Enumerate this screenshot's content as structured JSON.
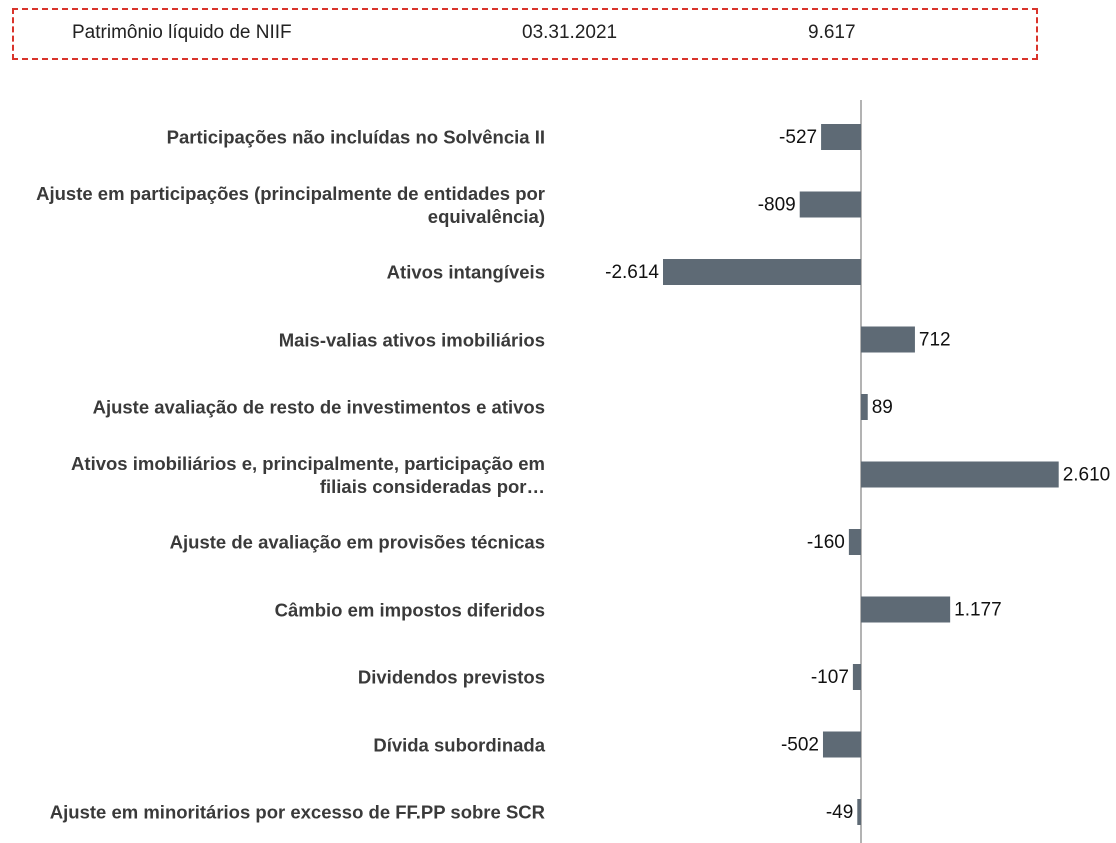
{
  "chart_data": {
    "type": "bar",
    "orientation": "horizontal",
    "annotations": [
      "Patrimônio líquido de NIIF",
      "03.31.2021",
      "9.617"
    ],
    "categories": [
      "Participações não incluídas no Solvência II",
      "Ajuste em participações (principalmente de entidades por equivalência)",
      "Ativos intangíveis",
      "Mais-valias ativos imobiliários",
      "Ajuste avaliação de resto de investimentos e ativos",
      "Ativos imobiliários e, principalmente, participação em filiais consideradas por…",
      "Ajuste de avaliação em provisões técnicas",
      "Câmbio em impostos diferidos",
      "Dividendos previstos",
      "Dívida subordinada",
      "Ajuste em minoritários por excesso de FF.PP sobre SCR"
    ],
    "values": [
      -527,
      -809,
      -2614,
      712,
      89,
      2610,
      -160,
      1177,
      -107,
      -502,
      -49
    ],
    "value_labels": [
      "-527",
      "-809",
      "-2.614",
      "712",
      "89",
      "2.610",
      "-160",
      "1.177",
      "-107",
      "-502",
      "-49"
    ],
    "color": "#5e6a75"
  }
}
